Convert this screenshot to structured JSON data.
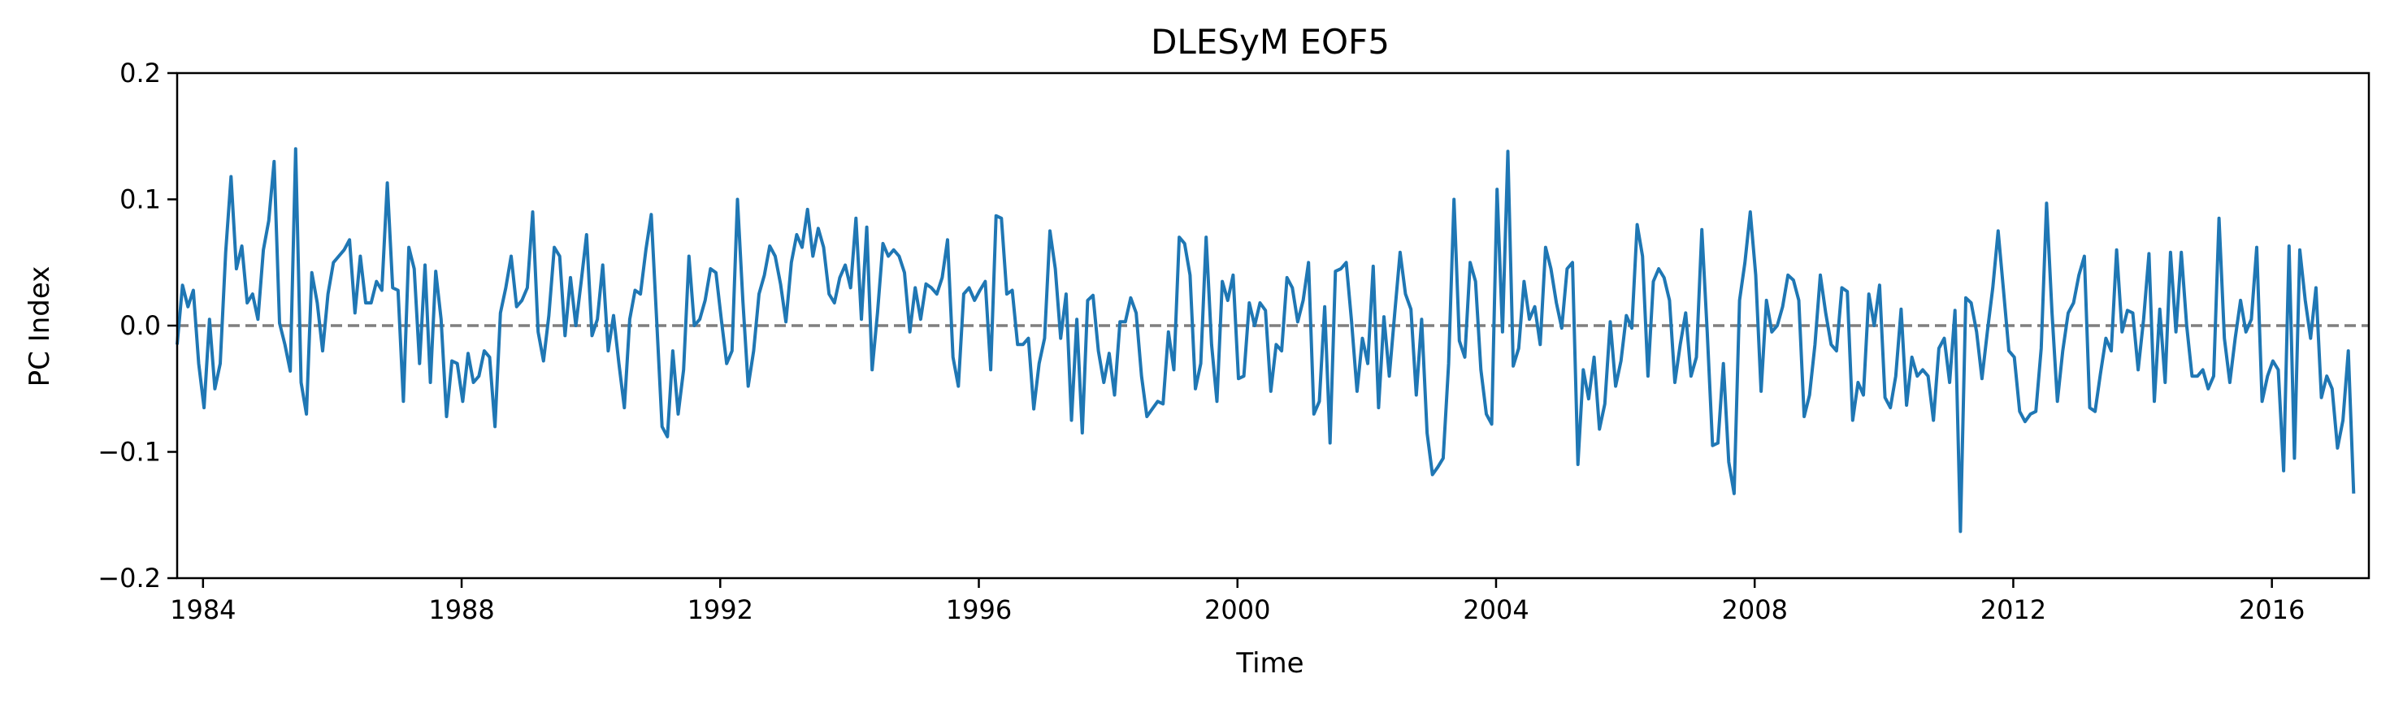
{
  "chart_data": {
    "type": "line",
    "title": "DLESyM  EOF5",
    "xlabel": "Time",
    "ylabel": "PC Index",
    "xlim": [
      1983.6,
      2017.5
    ],
    "ylim": [
      -0.2,
      0.2
    ],
    "xticks": [
      {
        "value": 1984,
        "label": "1984"
      },
      {
        "value": 1988,
        "label": "1988"
      },
      {
        "value": 1992,
        "label": "1992"
      },
      {
        "value": 1996,
        "label": "1996"
      },
      {
        "value": 2000,
        "label": "2000"
      },
      {
        "value": 2004,
        "label": "2004"
      },
      {
        "value": 2008,
        "label": "2008"
      },
      {
        "value": 2012,
        "label": "2012"
      },
      {
        "value": 2016,
        "label": "2016"
      }
    ],
    "yticks": [
      {
        "value": 0.2,
        "label": "0.2"
      },
      {
        "value": 0.1,
        "label": "0.1"
      },
      {
        "value": 0.0,
        "label": "0.0"
      },
      {
        "value": -0.1,
        "label": "−0.1"
      },
      {
        "value": -0.2,
        "label": "−0.2"
      }
    ],
    "reference_line": {
      "y": 0.0,
      "style": "dashed",
      "color": "#7f7f7f"
    },
    "grid": false,
    "series": [
      {
        "color": "#1f77b4",
        "x_start": 1983.6,
        "x_step": 0.08333,
        "values": [
          -0.015,
          0.032,
          0.015,
          0.028,
          -0.03,
          -0.065,
          0.005,
          -0.05,
          -0.03,
          0.058,
          0.118,
          0.045,
          0.063,
          0.018,
          0.025,
          0.005,
          0.06,
          0.083,
          0.13,
          0.002,
          -0.015,
          -0.036,
          0.14,
          -0.045,
          -0.07,
          0.042,
          0.018,
          -0.02,
          0.025,
          0.05,
          0.055,
          0.06,
          0.068,
          0.01,
          0.055,
          0.018,
          0.018,
          0.035,
          0.028,
          0.113,
          0.03,
          0.028,
          -0.06,
          0.062,
          0.045,
          -0.03,
          0.048,
          -0.045,
          0.043,
          0.005,
          -0.072,
          -0.028,
          -0.03,
          -0.06,
          -0.022,
          -0.045,
          -0.04,
          -0.02,
          -0.025,
          -0.08,
          0.01,
          0.03,
          0.055,
          0.015,
          0.02,
          0.03,
          0.09,
          -0.005,
          -0.028,
          0.008,
          0.062,
          0.055,
          -0.008,
          0.038,
          0.0,
          0.035,
          0.072,
          -0.008,
          0.005,
          0.048,
          -0.02,
          0.008,
          -0.03,
          -0.065,
          0.005,
          0.028,
          0.025,
          0.06,
          0.088,
          0.005,
          -0.08,
          -0.088,
          -0.02,
          -0.07,
          -0.035,
          0.055,
          0.0,
          0.005,
          0.02,
          0.045,
          0.042,
          0.005,
          -0.03,
          -0.02,
          0.1,
          0.02,
          -0.048,
          -0.02,
          0.025,
          0.04,
          0.063,
          0.055,
          0.033,
          0.003,
          0.05,
          0.072,
          0.062,
          0.092,
          0.055,
          0.077,
          0.062,
          0.025,
          0.018,
          0.038,
          0.048,
          0.03,
          0.085,
          0.005,
          0.078,
          -0.035,
          0.01,
          0.065,
          0.055,
          0.06,
          0.055,
          0.042,
          -0.005,
          0.03,
          0.005,
          0.033,
          0.03,
          0.025,
          0.038,
          0.068,
          -0.025,
          -0.048,
          0.025,
          0.03,
          0.02,
          0.028,
          0.035,
          -0.035,
          0.087,
          0.085,
          0.025,
          0.028,
          -0.015,
          -0.015,
          -0.01,
          -0.066,
          -0.03,
          -0.01,
          0.075,
          0.045,
          -0.01,
          0.025,
          -0.075,
          0.005,
          -0.085,
          0.02,
          0.024,
          -0.02,
          -0.045,
          -0.022,
          -0.055,
          0.003,
          0.003,
          0.022,
          0.01,
          -0.04,
          -0.072,
          -0.066,
          -0.06,
          -0.062,
          -0.005,
          -0.035,
          0.07,
          0.065,
          0.04,
          -0.05,
          -0.03,
          0.07,
          -0.015,
          -0.06,
          0.035,
          0.02,
          0.04,
          -0.042,
          -0.04,
          0.018,
          0.0,
          0.018,
          0.012,
          -0.052,
          -0.015,
          -0.02,
          0.038,
          0.03,
          0.003,
          0.02,
          0.05,
          -0.07,
          -0.06,
          0.015,
          -0.093,
          0.043,
          0.045,
          0.05,
          0.003,
          -0.052,
          -0.01,
          -0.03,
          0.047,
          -0.065,
          0.007,
          -0.04,
          0.01,
          0.058,
          0.025,
          0.013,
          -0.055,
          0.005,
          -0.085,
          -0.118,
          -0.112,
          -0.105,
          -0.03,
          0.1,
          -0.012,
          -0.025,
          0.05,
          0.035,
          -0.035,
          -0.07,
          -0.078,
          0.108,
          -0.005,
          0.138,
          -0.032,
          -0.018,
          0.035,
          0.005,
          0.015,
          -0.015,
          0.062,
          0.045,
          0.018,
          -0.002,
          0.045,
          0.05,
          -0.11,
          -0.035,
          -0.058,
          -0.025,
          -0.082,
          -0.062,
          0.003,
          -0.048,
          -0.028,
          0.008,
          -0.002,
          0.08,
          0.055,
          -0.04,
          0.035,
          0.045,
          0.038,
          0.02,
          -0.045,
          -0.015,
          0.01,
          -0.04,
          -0.025,
          0.076,
          -0.005,
          -0.095,
          -0.093,
          -0.03,
          -0.108,
          -0.133,
          0.02,
          0.05,
          0.09,
          0.04,
          -0.052,
          0.02,
          -0.005,
          0.0,
          0.015,
          0.04,
          0.036,
          0.02,
          -0.072,
          -0.055,
          -0.015,
          0.04,
          0.01,
          -0.015,
          -0.02,
          0.03,
          0.027,
          -0.075,
          -0.045,
          -0.055,
          0.025,
          0.0,
          0.032,
          -0.057,
          -0.065,
          -0.04,
          0.013,
          -0.063,
          -0.025,
          -0.04,
          -0.035,
          -0.04,
          -0.075,
          -0.018,
          -0.01,
          -0.045,
          0.012,
          -0.163,
          0.022,
          0.018,
          -0.005,
          -0.042,
          -0.005,
          0.03,
          0.075,
          0.028,
          -0.02,
          -0.025,
          -0.068,
          -0.076,
          -0.07,
          -0.068,
          -0.018,
          0.097,
          0.01,
          -0.06,
          -0.02,
          0.01,
          0.018,
          0.04,
          0.055,
          -0.065,
          -0.068,
          -0.038,
          -0.01,
          -0.02,
          0.06,
          -0.005,
          0.012,
          0.01,
          -0.035,
          0.005,
          0.057,
          -0.06,
          0.013,
          -0.045,
          0.058,
          -0.005,
          0.058,
          0.0,
          -0.04,
          -0.04,
          -0.035,
          -0.05,
          -0.04,
          0.085,
          -0.01,
          -0.045,
          -0.01,
          0.02,
          -0.005,
          0.005,
          0.062,
          -0.06,
          -0.04,
          -0.028,
          -0.035,
          -0.115,
          0.063,
          -0.105,
          0.06,
          0.02,
          -0.01,
          0.03,
          -0.057,
          -0.04,
          -0.05,
          -0.097,
          -0.075,
          -0.02,
          -0.133
        ]
      }
    ]
  }
}
